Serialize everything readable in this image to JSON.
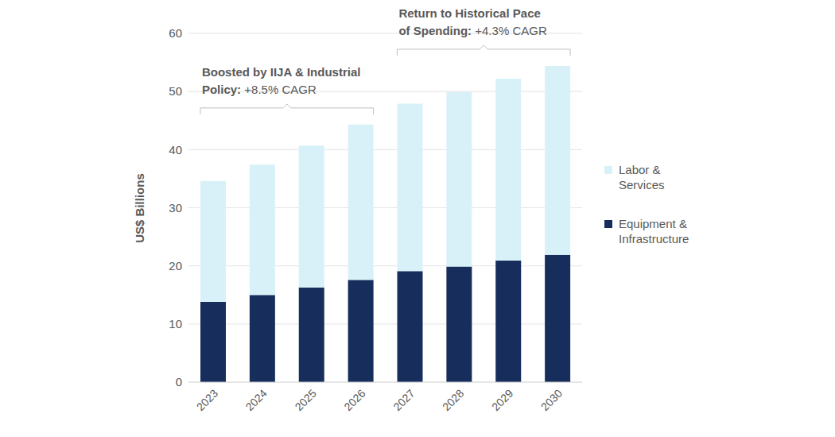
{
  "chart_data": {
    "type": "bar",
    "stacked": true,
    "categories": [
      "2023",
      "2024",
      "2025",
      "2026",
      "2027",
      "2028",
      "2029",
      "2030"
    ],
    "series": [
      {
        "name": "Equipment & Infrastructure",
        "color": "#172e5c",
        "values": [
          13.8,
          15.0,
          16.3,
          17.6,
          19.1,
          19.9,
          20.9,
          21.9
        ]
      },
      {
        "name": "Labor & Services",
        "color": "#d8f1f9",
        "values": [
          20.8,
          22.4,
          24.4,
          26.7,
          28.8,
          30.0,
          31.3,
          32.5
        ]
      }
    ],
    "y_label": "US$ Billions",
    "ylim": [
      0,
      60
    ],
    "yticks": [
      0,
      10,
      20,
      30,
      40,
      50,
      60
    ],
    "grid": true,
    "legend": "right",
    "annotations": [
      {
        "text": [
          "Boosted by IIJA & Industrial",
          "Policy:"
        ],
        "detail": "+8.5% CAGR",
        "from": "2023",
        "to": "2026"
      },
      {
        "text": [
          "Return to Historical Pace",
          "of Spending:"
        ],
        "detail": "+4.3% CAGR",
        "from": "2027",
        "to": "2030"
      }
    ]
  }
}
